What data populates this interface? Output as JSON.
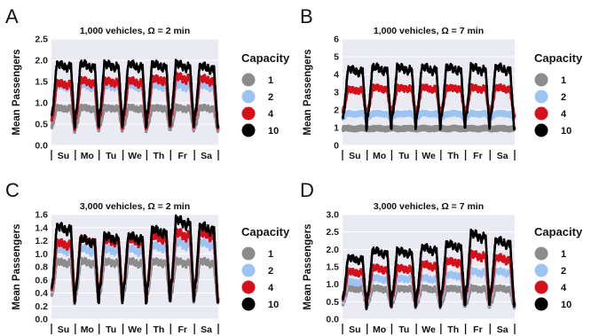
{
  "figure": {
    "legend_title": "Capacity",
    "day_labels": [
      "Su",
      "Mo",
      "Tu",
      "We",
      "Th",
      "Fr",
      "Sa"
    ],
    "ylabel": "Mean Passengers",
    "series_styles": [
      {
        "name": "1",
        "color": "#8c8c8c"
      },
      {
        "name": "2",
        "color": "#9cc4f2"
      },
      {
        "name": "4",
        "color": "#d6101a"
      },
      {
        "name": "10",
        "color": "#000000"
      }
    ]
  },
  "chart_data": [
    {
      "panel": "A",
      "type": "line",
      "title": "1,000 vehicles, Ω = 2 min",
      "ylabel": "Mean Passengers",
      "ylim": [
        0,
        2.5
      ],
      "yticks": [
        "0.0",
        "0.5",
        "1.0",
        "1.5",
        "2.0",
        "2.5"
      ],
      "x_categories": [
        "Su",
        "Mo",
        "Tu",
        "We",
        "Th",
        "Fr",
        "Sa"
      ],
      "grid": true,
      "legend_position": "right",
      "series": [
        {
          "name": "1",
          "day_peak": 0.9,
          "night_min": 0.3,
          "weekday_peaks": [
            0.9,
            0.9,
            0.9,
            0.9,
            0.9,
            0.9,
            0.9
          ]
        },
        {
          "name": "2",
          "day_peak": 1.5,
          "night_min": 0.3,
          "weekday_peaks": [
            1.45,
            1.45,
            1.45,
            1.45,
            1.45,
            1.45,
            1.45
          ]
        },
        {
          "name": "4",
          "day_peak": 1.7,
          "night_min": 0.3,
          "weekday_peaks": [
            1.5,
            1.55,
            1.55,
            1.55,
            1.6,
            1.65,
            1.6
          ]
        },
        {
          "name": "10",
          "day_peak": 2.0,
          "night_min": 0.3,
          "weekday_peaks": [
            1.95,
            1.95,
            1.95,
            1.95,
            1.95,
            1.95,
            1.9
          ]
        }
      ]
    },
    {
      "panel": "B",
      "type": "line",
      "title": "1,000 vehicles, Ω = 7 min",
      "ylabel": "Mean Passengers",
      "ylim": [
        0,
        6
      ],
      "yticks": [
        "0",
        "1",
        "2",
        "3",
        "4",
        "5",
        "6"
      ],
      "x_categories": [
        "Su",
        "Mo",
        "Tu",
        "We",
        "Th",
        "Fr",
        "Sa"
      ],
      "grid": true,
      "legend_position": "right",
      "series": [
        {
          "name": "1",
          "day_peak": 0.95,
          "night_min": 0.95,
          "weekday_peaks": [
            0.95,
            0.95,
            0.95,
            0.95,
            0.95,
            0.95,
            0.95
          ]
        },
        {
          "name": "2",
          "day_peak": 1.8,
          "night_min": 1.5,
          "weekday_peaks": [
            1.8,
            1.8,
            1.8,
            1.8,
            1.8,
            1.8,
            1.8
          ]
        },
        {
          "name": "4",
          "day_peak": 3.3,
          "night_min": 1.5,
          "weekday_peaks": [
            3.2,
            3.3,
            3.3,
            3.3,
            3.3,
            3.3,
            3.3
          ]
        },
        {
          "name": "10",
          "day_peak": 4.5,
          "night_min": 0.6,
          "weekday_peaks": [
            4.4,
            4.5,
            4.5,
            4.5,
            4.5,
            4.5,
            4.5
          ]
        }
      ]
    },
    {
      "panel": "C",
      "type": "line",
      "title": "3,000 vehicles, Ω = 2 min",
      "ylabel": "Mean Passengers",
      "ylim": [
        0,
        1.6
      ],
      "yticks": [
        "0.0",
        "0.2",
        "0.4",
        "0.6",
        "0.8",
        "1.0",
        "1.2",
        "1.4",
        "1.6"
      ],
      "x_categories": [
        "Su",
        "Mo",
        "Tu",
        "We",
        "Th",
        "Fr",
        "Sa"
      ],
      "grid": true,
      "legend_position": "right",
      "series": [
        {
          "name": "1",
          "day_peak": 0.9,
          "night_min": 0.2,
          "weekday_peaks": [
            0.9,
            0.9,
            0.9,
            0.9,
            0.9,
            0.9,
            0.9
          ]
        },
        {
          "name": "2",
          "day_peak": 1.15,
          "night_min": 0.2,
          "weekday_peaks": [
            1.1,
            1.1,
            1.1,
            1.1,
            1.15,
            1.2,
            1.2
          ]
        },
        {
          "name": "4",
          "day_peak": 1.3,
          "night_min": 0.2,
          "weekday_peaks": [
            1.2,
            1.25,
            1.25,
            1.25,
            1.3,
            1.35,
            1.35
          ]
        },
        {
          "name": "10",
          "day_peak": 1.5,
          "night_min": 0.15,
          "weekday_peaks": [
            1.45,
            1.25,
            1.3,
            1.3,
            1.4,
            1.55,
            1.45
          ]
        }
      ]
    },
    {
      "panel": "D",
      "type": "line",
      "title": "3,000 vehicles, Ω = 7 min",
      "ylabel": "Mean Passengers",
      "ylim": [
        0,
        3.0
      ],
      "yticks": [
        "0.0",
        "0.5",
        "1.0",
        "1.5",
        "2.0",
        "2.5",
        "3.0"
      ],
      "x_categories": [
        "Su",
        "Mo",
        "Tu",
        "We",
        "Th",
        "Fr",
        "Sa"
      ],
      "grid": true,
      "legend_position": "right",
      "series": [
        {
          "name": "1",
          "day_peak": 0.9,
          "night_min": 0.3,
          "weekday_peaks": [
            0.9,
            0.9,
            0.9,
            0.9,
            0.9,
            0.9,
            0.9
          ]
        },
        {
          "name": "2",
          "day_peak": 1.3,
          "night_min": 0.3,
          "weekday_peaks": [
            1.1,
            1.2,
            1.2,
            1.2,
            1.3,
            1.4,
            1.4
          ]
        },
        {
          "name": "4",
          "day_peak": 1.7,
          "night_min": 0.3,
          "weekday_peaks": [
            1.4,
            1.5,
            1.5,
            1.6,
            1.7,
            1.9,
            1.8
          ]
        },
        {
          "name": "10",
          "day_peak": 2.4,
          "night_min": 0.2,
          "weekday_peaks": [
            1.8,
            2.0,
            2.0,
            2.1,
            2.2,
            2.5,
            2.3
          ]
        }
      ]
    }
  ]
}
